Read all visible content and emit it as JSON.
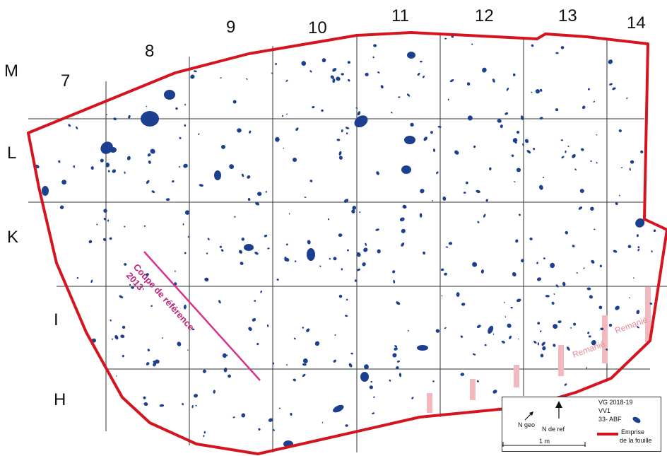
{
  "columns": [
    "7",
    "8",
    "9",
    "10",
    "11",
    "12",
    "13",
    "14"
  ],
  "rows": [
    "M",
    "L",
    "K",
    "I",
    "H"
  ],
  "section_line": {
    "label_line1": "Coupe de référence",
    "label_line2": "2013"
  },
  "remanie_labels": [
    "Remanié",
    "Remanié"
  ],
  "legend": {
    "title_line1": "VG 2018-19",
    "title_line2": "VV1",
    "title_line3": "33- ABF",
    "north_geo": "N geo",
    "north_ref": "N de ref",
    "scale": "1 m",
    "emprise_line1": "Emprise",
    "emprise_line2": "de la fouille"
  },
  "colors": {
    "boundary": "#d4141e",
    "artifact": "#1d3f8f",
    "section_line": "#d6338a",
    "remanie": "#f2b8bd",
    "grid": "#333333"
  }
}
